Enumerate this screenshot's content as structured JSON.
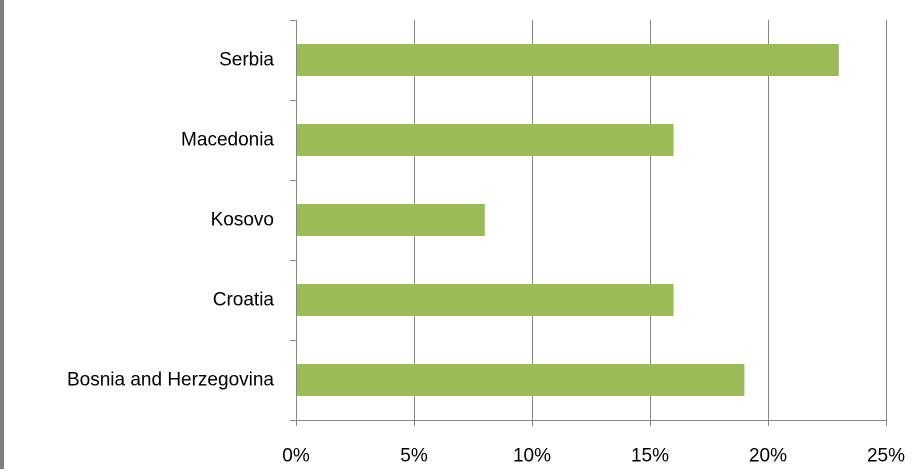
{
  "chart_data": {
    "type": "bar",
    "orientation": "horizontal",
    "categories": [
      "Serbia",
      "Macedonia",
      "Kosovo",
      "Croatia",
      "Bosnia and Herzegovina"
    ],
    "values": [
      0.23,
      0.16,
      0.08,
      0.16,
      0.19
    ],
    "xlim": [
      0,
      0.25
    ],
    "xticks": [
      0,
      0.05,
      0.1,
      0.15,
      0.2,
      0.25
    ],
    "xtick_labels": [
      "0%",
      "5%",
      "10%",
      "15%",
      "20%",
      "25%"
    ],
    "value_format": "percent",
    "title": "",
    "xlabel": "",
    "ylabel": "",
    "grid": "vertical",
    "legend": "none",
    "bar_color": "#9bbb59",
    "grid_color": "#868686"
  }
}
